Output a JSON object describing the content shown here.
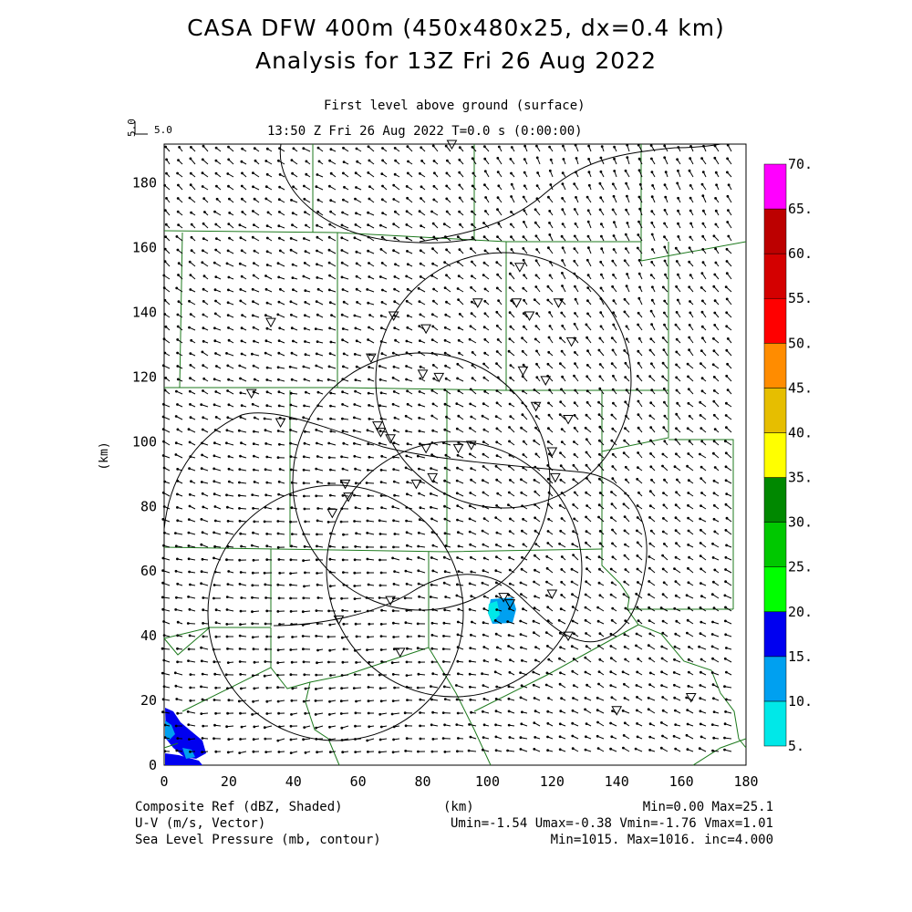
{
  "title_line1": "CASA DFW 400m (450x480x25, dx=0.4 km)",
  "title_line2": "Analysis for 13Z Fri 26 Aug 2022",
  "level_label": "First level above ground (surface)",
  "time_label": "13:50 Z Fri 26 Aug 2022    T=0.0 s (0:00:00)",
  "vector_ref": {
    "vertical": "5.0",
    "horizontal": "5.0"
  },
  "x_axis": {
    "label": "(km)",
    "ticks": [
      "0",
      "20",
      "40",
      "60",
      "80",
      "100",
      "120",
      "140",
      "160",
      "180"
    ]
  },
  "y_axis": {
    "label": "(km)",
    "ticks": [
      "0",
      "20",
      "40",
      "60",
      "80",
      "100",
      "120",
      "140",
      "160",
      "180"
    ]
  },
  "colorbar": {
    "labels": [
      "5.",
      "10.",
      "15.",
      "20.",
      "25.",
      "30.",
      "35.",
      "40.",
      "45.",
      "50.",
      "55.",
      "60.",
      "65.",
      "70."
    ],
    "colors": [
      "#00e8e8",
      "#00a0f0",
      "#0000f0",
      "#00ff00",
      "#00c800",
      "#008800",
      "#ffff00",
      "#e6be00",
      "#ff8c00",
      "#ff0000",
      "#d40000",
      "#bc0000",
      "#ff00ff"
    ]
  },
  "footer": {
    "field1_name": "Composite Ref (dBZ, Shaded)",
    "field1_stats": "Min=0.00 Max=25.1",
    "field2_name": "U-V (m/s, Vector)",
    "field2_stats": "Umin=-1.54 Umax=-0.38 Vmin=-1.76 Vmax=1.01",
    "field3_name": "Sea Level Pressure (mb, contour)",
    "field3_stats": "Min=1015. Max=1016. inc=4.000",
    "x_unit": "(km)"
  },
  "stations_km": [
    [
      33,
      137
    ],
    [
      27,
      115
    ],
    [
      36,
      106
    ],
    [
      64,
      126
    ],
    [
      71,
      139
    ],
    [
      81,
      135
    ],
    [
      80,
      121
    ],
    [
      85,
      120
    ],
    [
      97,
      143
    ],
    [
      109,
      143
    ],
    [
      110,
      154
    ],
    [
      113,
      139
    ],
    [
      122,
      143
    ],
    [
      126,
      131
    ],
    [
      111,
      122
    ],
    [
      118,
      119
    ],
    [
      115,
      111
    ],
    [
      125,
      107
    ],
    [
      66,
      105
    ],
    [
      67,
      103
    ],
    [
      70,
      101
    ],
    [
      81,
      98
    ],
    [
      91,
      98
    ],
    [
      95,
      99
    ],
    [
      120,
      97
    ],
    [
      121,
      89
    ],
    [
      78,
      87
    ],
    [
      83,
      89
    ],
    [
      56,
      87
    ],
    [
      57,
      83
    ],
    [
      52,
      78
    ],
    [
      105,
      52
    ],
    [
      107,
      50
    ],
    [
      120,
      53
    ],
    [
      70,
      51
    ],
    [
      54,
      45
    ],
    [
      73,
      35
    ],
    [
      125,
      40
    ],
    [
      140,
      17
    ],
    [
      163,
      21
    ],
    [
      89,
      192
    ]
  ],
  "reflectivity_cells": [
    {
      "x": 102,
      "y": 46,
      "w": 8,
      "h": 7,
      "dbz": "5-15"
    },
    {
      "x": 0,
      "y": 0,
      "w": 13,
      "h": 17,
      "dbz": "5-20"
    }
  ]
}
